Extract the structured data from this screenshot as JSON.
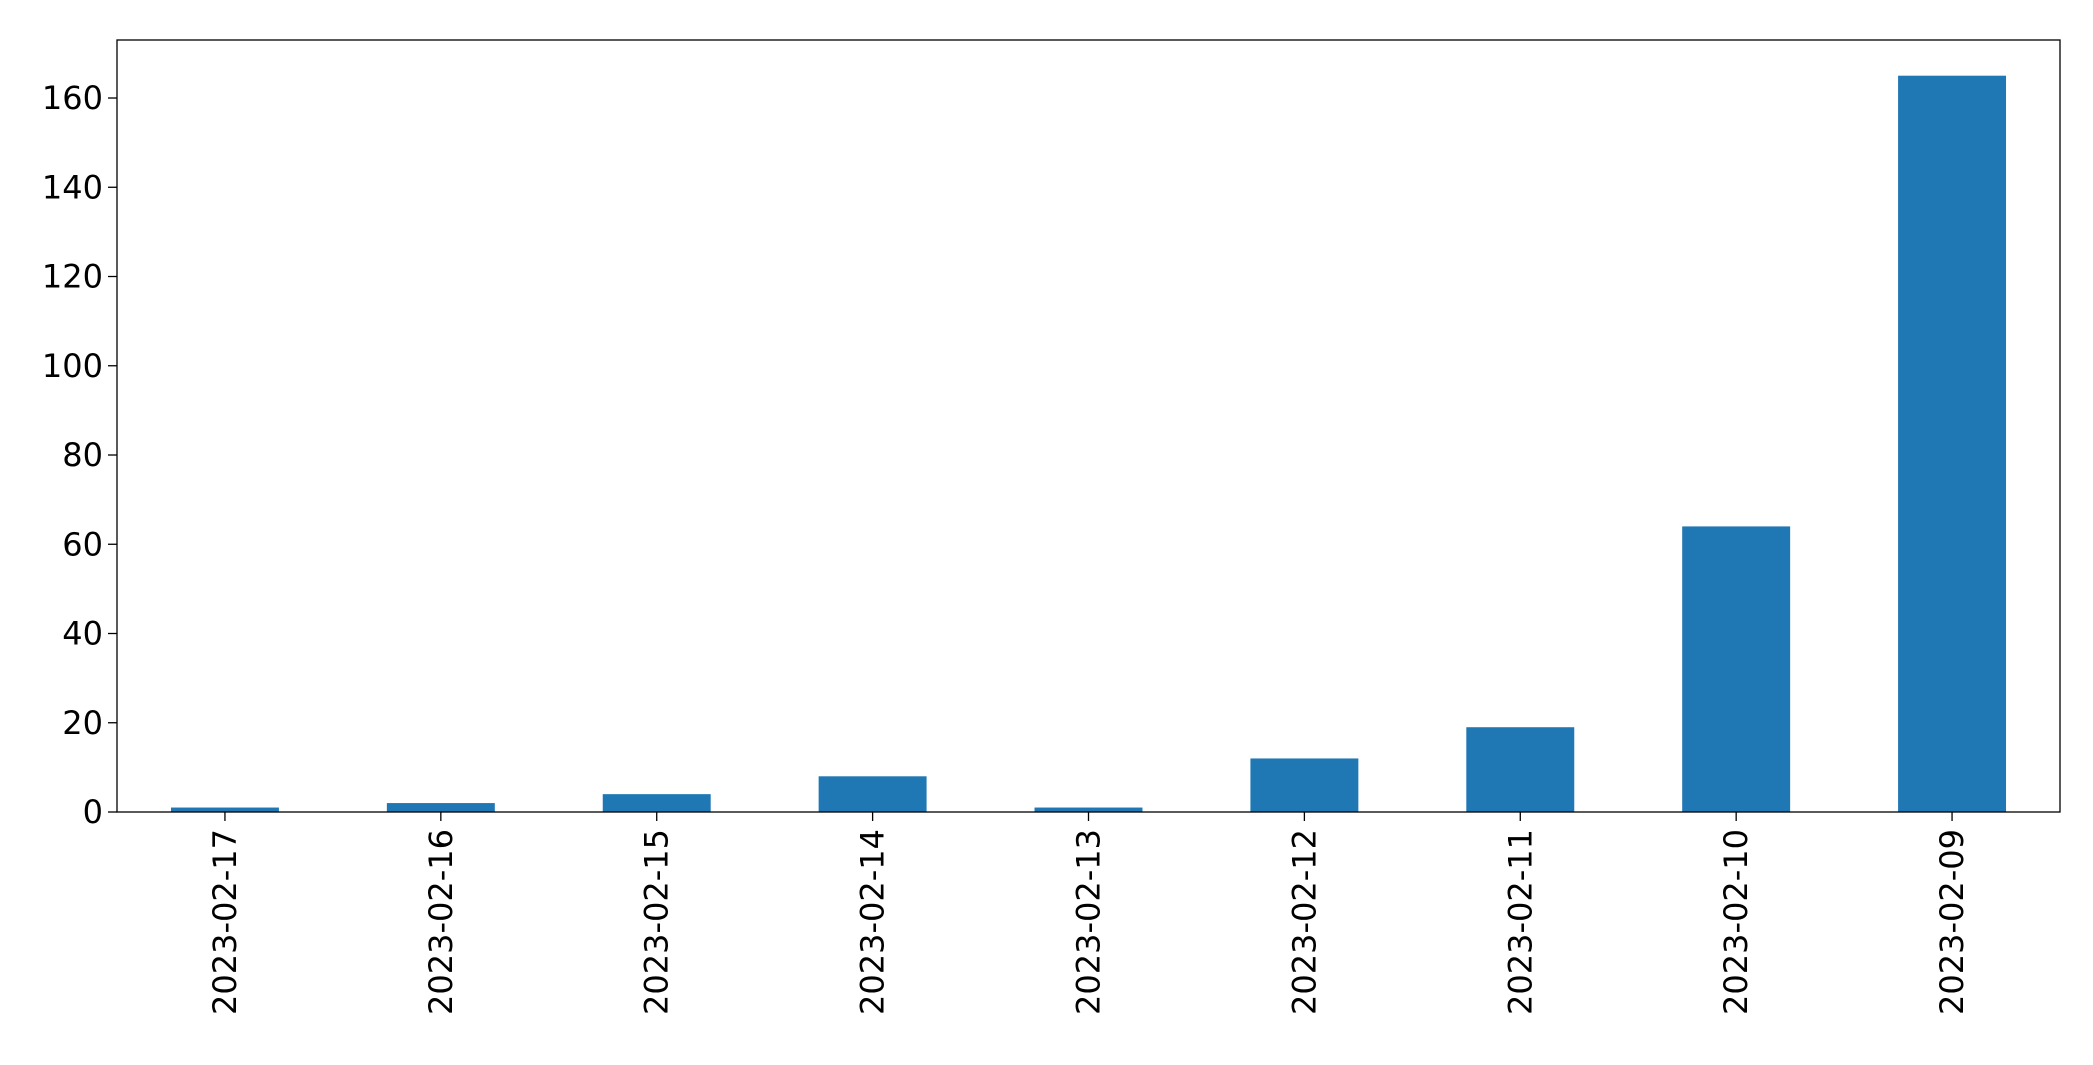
{
  "chart_data": {
    "type": "bar",
    "title": "",
    "xlabel": "",
    "ylabel": "",
    "categories": [
      "2023-02-17",
      "2023-02-16",
      "2023-02-15",
      "2023-02-14",
      "2023-02-13",
      "2023-02-12",
      "2023-02-11",
      "2023-02-10",
      "2023-02-09"
    ],
    "values": [
      1,
      2,
      4,
      8,
      1,
      12,
      19,
      64,
      165
    ],
    "ylim": [
      0,
      173
    ],
    "yticks": [
      0,
      20,
      40,
      60,
      80,
      100,
      120,
      140,
      160
    ],
    "grid": false,
    "legend": "none",
    "bar_color": "#1f77b4"
  }
}
